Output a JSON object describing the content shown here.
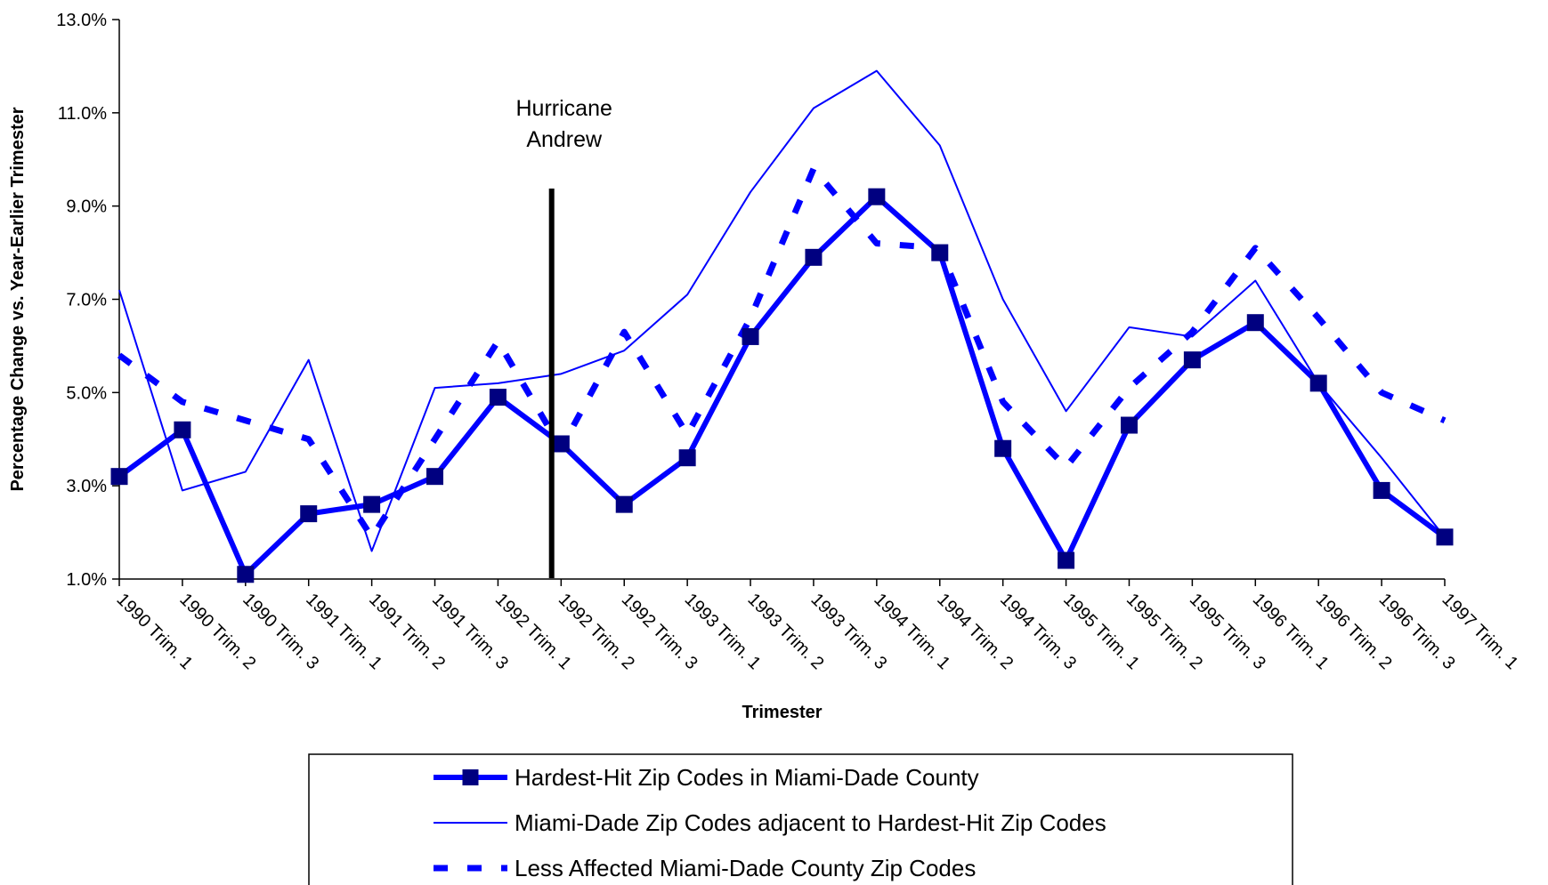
{
  "chart_data": {
    "type": "line",
    "title": "",
    "xlabel": "Trimester",
    "ylabel": "Percentage Change vs. Year-Earlier Trimester",
    "ylim": [
      1.0,
      13.0
    ],
    "yticks": [
      "1.0%",
      "3.0%",
      "5.0%",
      "7.0%",
      "9.0%",
      "11.0%",
      "13.0%"
    ],
    "ytick_values": [
      1,
      3,
      5,
      7,
      9,
      11,
      13
    ],
    "grid": false,
    "legend_position": "bottom",
    "categories": [
      "1990 Trim. 1",
      "1990 Trim. 2",
      "1990 Trim. 3",
      "1991 Trim. 1",
      "1991 Trim. 2",
      "1991 Trim. 3",
      "1992 Trim. 1",
      "1992 Trim. 2",
      "1992 Trim. 3",
      "1993 Trim. 1",
      "1993 Trim. 2",
      "1993 Trim. 3",
      "1994 Trim. 1",
      "1994 Trim. 2",
      "1994 Trim. 3",
      "1995 Trim. 1",
      "1995 Trim. 2",
      "1995 Trim. 3",
      "1996 Trim. 1",
      "1996 Trim. 2",
      "1996 Trim. 3",
      "1997 Trim. 1"
    ],
    "series": [
      {
        "name": "Hardest-Hit Zip Codes in Miami-Dade County",
        "style": "thick-marker",
        "color": "#0000FF",
        "values": [
          3.2,
          4.2,
          1.1,
          2.4,
          2.6,
          3.2,
          4.9,
          3.9,
          2.6,
          3.6,
          6.2,
          7.9,
          9.2,
          8.0,
          3.8,
          1.4,
          4.3,
          5.7,
          6.5,
          5.2,
          2.9,
          1.9
        ]
      },
      {
        "name": "Miami-Dade Zip Codes adjacent to Hardest-Hit Zip Codes",
        "style": "thin",
        "color": "#0000FF",
        "values": [
          7.2,
          2.9,
          3.3,
          5.7,
          1.6,
          5.1,
          5.2,
          5.4,
          5.9,
          7.1,
          9.3,
          11.1,
          11.9,
          10.3,
          7.0,
          4.6,
          6.4,
          6.2,
          7.4,
          5.2,
          3.6,
          1.9
        ]
      },
      {
        "name": "Less Affected Miami-Dade County Zip Codes",
        "style": "dashed",
        "color": "#0000FF",
        "values": [
          5.8,
          4.8,
          4.4,
          4.0,
          1.9,
          4.0,
          6.1,
          3.8,
          6.3,
          4.1,
          6.6,
          9.8,
          8.2,
          8.1,
          4.8,
          3.4,
          5.1,
          6.3,
          8.1,
          6.6,
          5.0,
          4.4
        ]
      }
    ],
    "annotations": [
      {
        "text_lines": [
          "Hurricane",
          "Andrew"
        ],
        "x_between": [
          "1992 Trim. 1",
          "1992 Trim. 2"
        ],
        "marker": "vertical-line",
        "color": "#000000"
      }
    ]
  }
}
